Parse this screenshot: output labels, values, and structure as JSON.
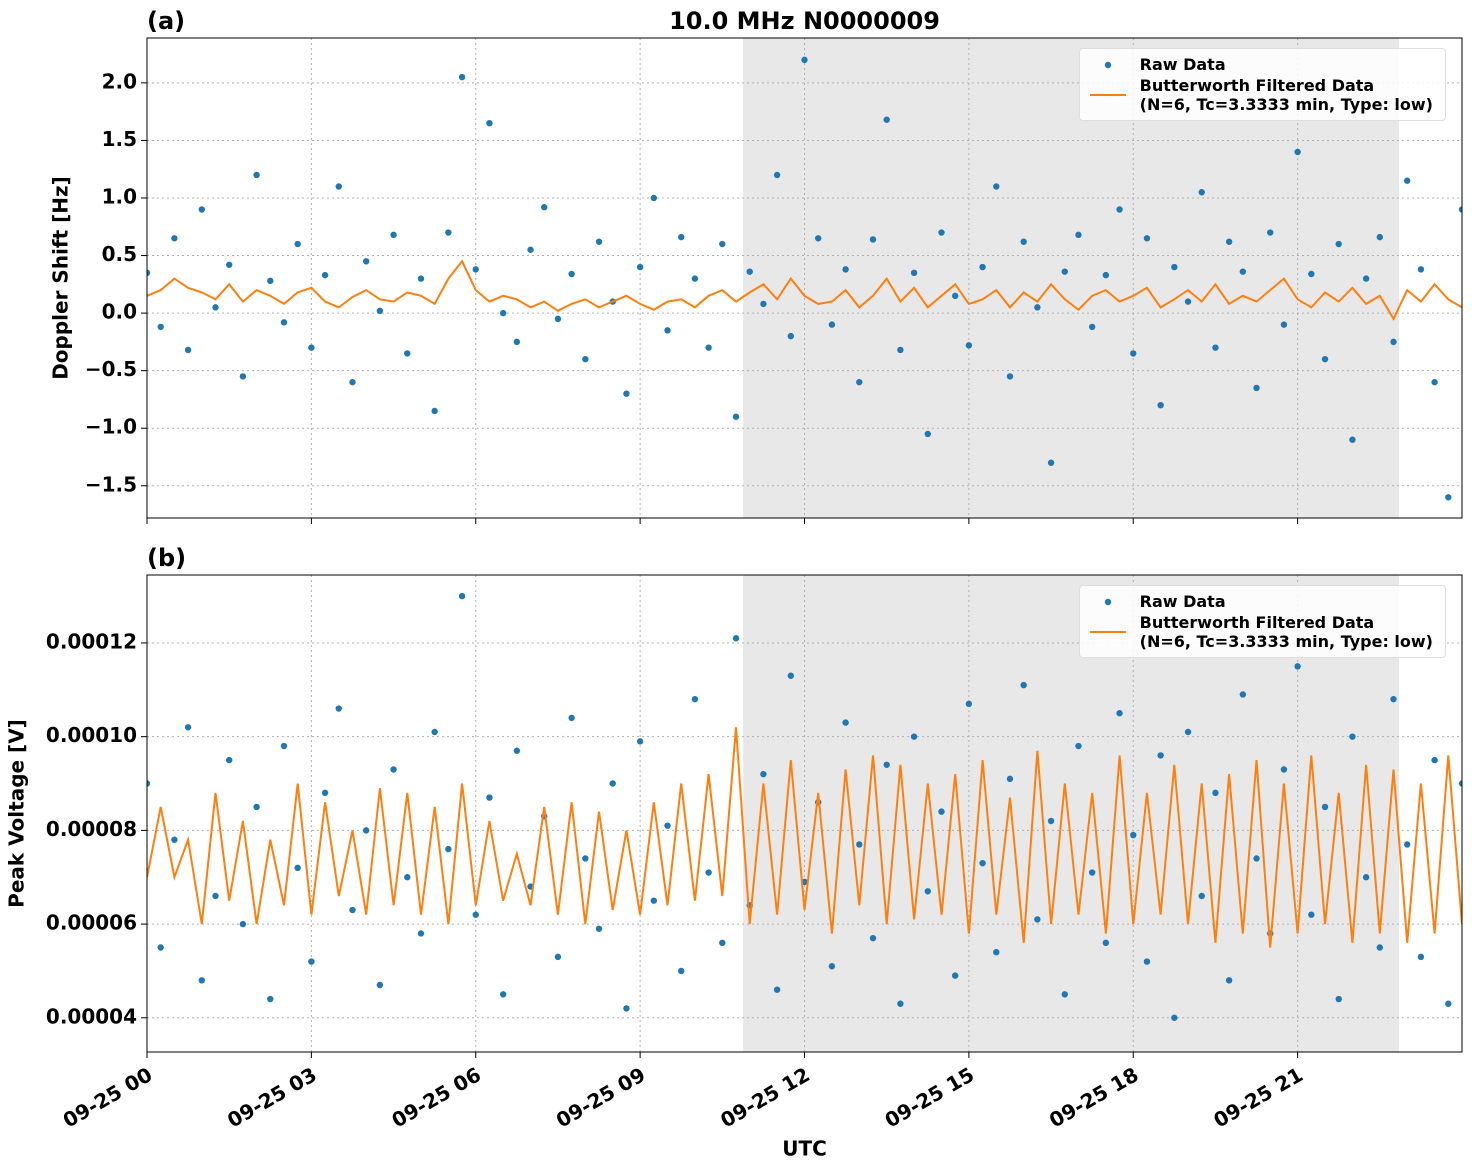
{
  "chart_data": [
    {
      "type": "line",
      "title": "10.0 MHz N0000009",
      "panel_label": "(a)",
      "ylabel": "Doppler Shift [Hz]",
      "xlim": [
        0,
        24
      ],
      "ylim": [
        -1.78,
        2.39
      ],
      "grid": true,
      "legend": "upper right",
      "shaded_span": [
        10.88,
        22.85
      ],
      "xticks": [
        0,
        3,
        6,
        9,
        12,
        15,
        18,
        21
      ],
      "yticks": [
        {
          "value": -1.5,
          "label": "−1.5"
        },
        {
          "value": -1,
          "label": "−1.0"
        },
        {
          "value": -0.5,
          "label": "−0.5"
        },
        {
          "value": 0,
          "label": "0.0"
        },
        {
          "value": 0.5,
          "label": "0.5"
        },
        {
          "value": 1,
          "label": "1.0"
        },
        {
          "value": 1.5,
          "label": "1.5"
        },
        {
          "value": 2,
          "label": "2.0"
        }
      ],
      "x": [
        0,
        0.25,
        0.5,
        0.75,
        1,
        1.25,
        1.5,
        1.75,
        2,
        2.25,
        2.5,
        2.75,
        3,
        3.25,
        3.5,
        3.75,
        4,
        4.25,
        4.5,
        4.75,
        5,
        5.25,
        5.5,
        5.75,
        6,
        6.25,
        6.5,
        6.75,
        7,
        7.25,
        7.5,
        7.75,
        8,
        8.25,
        8.5,
        8.75,
        9,
        9.25,
        9.5,
        9.75,
        10,
        10.25,
        10.5,
        10.75,
        11,
        11.25,
        11.5,
        11.75,
        12,
        12.25,
        12.5,
        12.75,
        13,
        13.25,
        13.5,
        13.75,
        14,
        14.25,
        14.5,
        14.75,
        15,
        15.25,
        15.5,
        15.75,
        16,
        16.25,
        16.5,
        16.75,
        17,
        17.25,
        17.5,
        17.75,
        18,
        18.25,
        18.5,
        18.75,
        19,
        19.25,
        19.5,
        19.75,
        20,
        20.25,
        20.5,
        20.75,
        21,
        21.25,
        21.5,
        21.75,
        22,
        22.25,
        22.5,
        22.75,
        23,
        23.25,
        23.5,
        23.75,
        24
      ],
      "series": [
        {
          "name": "Raw Data",
          "type": "scatter",
          "color": "#1f77b4",
          "values": [
            0.35,
            -0.12,
            0.65,
            -0.32,
            0.9,
            0.05,
            0.42,
            -0.55,
            1.2,
            0.28,
            -0.08,
            0.6,
            -0.3,
            0.33,
            1.1,
            -0.6,
            0.45,
            0.02,
            0.68,
            -0.35,
            0.3,
            -0.85,
            0.7,
            2.05,
            0.38,
            1.65,
            0.0,
            -0.25,
            0.55,
            0.92,
            -0.05,
            0.34,
            -0.4,
            0.62,
            0.1,
            -0.7,
            0.4,
            1.0,
            -0.15,
            0.66,
            0.3,
            -0.3,
            0.6,
            -0.9,
            0.36,
            0.08,
            1.2,
            -0.2,
            2.2,
            0.65,
            -0.1,
            0.38,
            -0.6,
            0.64,
            1.68,
            -0.32,
            0.35,
            -1.05,
            0.7,
            0.15,
            -0.28,
            0.4,
            1.1,
            -0.55,
            0.62,
            0.05,
            -1.3,
            0.36,
            0.68,
            -0.12,
            0.33,
            0.9,
            -0.35,
            0.65,
            -0.8,
            0.4,
            0.1,
            1.05,
            -0.3,
            0.62,
            0.36,
            -0.65,
            0.7,
            -0.1,
            1.4,
            0.34,
            -0.4,
            0.6,
            -1.1,
            0.3,
            0.66,
            -0.25,
            1.15,
            0.38,
            -0.6,
            -1.6,
            0.9
          ]
        },
        {
          "name": "Butterworth Filtered Data\n(N=6, Tc=3.3333 min, Type: low)",
          "type": "line",
          "color": "#ff7f0e",
          "values": [
            0.15,
            0.2,
            0.3,
            0.22,
            0.18,
            0.12,
            0.25,
            0.1,
            0.2,
            0.15,
            0.08,
            0.18,
            0.22,
            0.1,
            0.05,
            0.14,
            0.2,
            0.12,
            0.1,
            0.18,
            0.15,
            0.08,
            0.3,
            0.45,
            0.2,
            0.1,
            0.15,
            0.12,
            0.05,
            0.1,
            0.02,
            0.08,
            0.12,
            0.05,
            0.1,
            0.15,
            0.08,
            0.03,
            0.1,
            0.12,
            0.05,
            0.15,
            0.2,
            0.1,
            0.18,
            0.25,
            0.12,
            0.3,
            0.15,
            0.08,
            0.1,
            0.2,
            0.05,
            0.15,
            0.3,
            0.1,
            0.22,
            0.05,
            0.15,
            0.25,
            0.08,
            0.12,
            0.2,
            0.05,
            0.18,
            0.1,
            0.25,
            0.12,
            0.03,
            0.15,
            0.2,
            0.1,
            0.15,
            0.22,
            0.05,
            0.12,
            0.2,
            0.1,
            0.25,
            0.08,
            0.15,
            0.1,
            0.2,
            0.3,
            0.12,
            0.05,
            0.18,
            0.1,
            0.22,
            0.08,
            0.15,
            -0.05,
            0.2,
            0.1,
            0.25,
            0.12,
            0.05
          ]
        }
      ]
    },
    {
      "type": "line",
      "panel_label": "(b)",
      "ylabel": "Peak Voltage [V]",
      "xlabel": "UTC",
      "xlim": [
        0,
        24
      ],
      "ylim": [
        3.27e-05,
        0.0001345
      ],
      "grid": true,
      "legend": "upper right",
      "shaded_span": [
        10.88,
        22.85
      ],
      "xticks": [
        {
          "value": 0,
          "label": "09-25 00"
        },
        {
          "value": 3,
          "label": "09-25 03"
        },
        {
          "value": 6,
          "label": "09-25 06"
        },
        {
          "value": 9,
          "label": "09-25 09"
        },
        {
          "value": 12,
          "label": "09-25 12"
        },
        {
          "value": 15,
          "label": "09-25 15"
        },
        {
          "value": 18,
          "label": "09-25 18"
        },
        {
          "value": 21,
          "label": "09-25 21"
        }
      ],
      "yticks": [
        4e-05,
        6e-05,
        8e-05,
        {
          "value": 0.0001,
          "label": "0.00010"
        },
        0.00012
      ],
      "x": [
        0,
        0.25,
        0.5,
        0.75,
        1,
        1.25,
        1.5,
        1.75,
        2,
        2.25,
        2.5,
        2.75,
        3,
        3.25,
        3.5,
        3.75,
        4,
        4.25,
        4.5,
        4.75,
        5,
        5.25,
        5.5,
        5.75,
        6,
        6.25,
        6.5,
        6.75,
        7,
        7.25,
        7.5,
        7.75,
        8,
        8.25,
        8.5,
        8.75,
        9,
        9.25,
        9.5,
        9.75,
        10,
        10.25,
        10.5,
        10.75,
        11,
        11.25,
        11.5,
        11.75,
        12,
        12.25,
        12.5,
        12.75,
        13,
        13.25,
        13.5,
        13.75,
        14,
        14.25,
        14.5,
        14.75,
        15,
        15.25,
        15.5,
        15.75,
        16,
        16.25,
        16.5,
        16.75,
        17,
        17.25,
        17.5,
        17.75,
        18,
        18.25,
        18.5,
        18.75,
        19,
        19.25,
        19.5,
        19.75,
        20,
        20.25,
        20.5,
        20.75,
        21,
        21.25,
        21.5,
        21.75,
        22,
        22.25,
        22.5,
        22.75,
        23,
        23.25,
        23.5,
        23.75,
        24
      ],
      "series": [
        {
          "name": "Raw Data",
          "type": "scatter",
          "color": "#1f77b4",
          "values": [
            9e-05,
            5.5e-05,
            7.8e-05,
            0.000102,
            4.8e-05,
            6.6e-05,
            9.5e-05,
            6e-05,
            8.5e-05,
            4.4e-05,
            9.8e-05,
            7.2e-05,
            5.2e-05,
            8.8e-05,
            0.000106,
            6.3e-05,
            8e-05,
            4.7e-05,
            9.3e-05,
            7e-05,
            5.8e-05,
            0.000101,
            7.6e-05,
            0.00013,
            6.2e-05,
            8.7e-05,
            4.5e-05,
            9.7e-05,
            6.8e-05,
            8.3e-05,
            5.3e-05,
            0.000104,
            7.4e-05,
            5.9e-05,
            9e-05,
            4.2e-05,
            9.9e-05,
            6.5e-05,
            8.1e-05,
            5e-05,
            0.000108,
            7.1e-05,
            5.6e-05,
            0.000121,
            6.4e-05,
            9.2e-05,
            4.6e-05,
            0.000113,
            6.9e-05,
            8.6e-05,
            5.1e-05,
            0.000103,
            7.7e-05,
            5.7e-05,
            9.4e-05,
            4.3e-05,
            0.0001,
            6.7e-05,
            8.4e-05,
            4.9e-05,
            0.000107,
            7.3e-05,
            5.4e-05,
            9.1e-05,
            0.000111,
            6.1e-05,
            8.2e-05,
            4.5e-05,
            9.8e-05,
            7.1e-05,
            5.6e-05,
            0.000105,
            7.9e-05,
            5.2e-05,
            9.6e-05,
            4e-05,
            0.000101,
            6.6e-05,
            8.8e-05,
            4.8e-05,
            0.000109,
            7.4e-05,
            5.8e-05,
            9.3e-05,
            0.000115,
            6.2e-05,
            8.5e-05,
            4.4e-05,
            0.0001,
            7e-05,
            5.5e-05,
            0.000108,
            7.7e-05,
            5.3e-05,
            9.5e-05,
            4.3e-05,
            9e-05
          ]
        },
        {
          "name": "Butterworth Filtered Data\n(N=6, Tc=3.3333 min, Type: low)",
          "type": "line",
          "color": "#ff7f0e",
          "values": [
            7e-05,
            8.5e-05,
            7e-05,
            7.8e-05,
            6e-05,
            8.8e-05,
            6.5e-05,
            8.2e-05,
            6e-05,
            7.8e-05,
            6.4e-05,
            9e-05,
            6.2e-05,
            8.6e-05,
            6.6e-05,
            8e-05,
            6.2e-05,
            8.9e-05,
            6.4e-05,
            8.8e-05,
            6.2e-05,
            8.5e-05,
            6e-05,
            9e-05,
            6.4e-05,
            8.2e-05,
            6.5e-05,
            7.5e-05,
            6.4e-05,
            8.5e-05,
            6.2e-05,
            8.6e-05,
            6e-05,
            8.4e-05,
            6.3e-05,
            8e-05,
            6.2e-05,
            8.6e-05,
            6.4e-05,
            9e-05,
            6.5e-05,
            9.2e-05,
            6.6e-05,
            0.000102,
            6e-05,
            9e-05,
            6.2e-05,
            9.5e-05,
            6.3e-05,
            8.8e-05,
            5.8e-05,
            9.3e-05,
            6.4e-05,
            9.6e-05,
            6e-05,
            9.4e-05,
            6.1e-05,
            9e-05,
            6.2e-05,
            9.2e-05,
            5.8e-05,
            9.5e-05,
            6.2e-05,
            8.7e-05,
            5.6e-05,
            9.7e-05,
            6e-05,
            9e-05,
            6.2e-05,
            8.8e-05,
            5.8e-05,
            9.6e-05,
            6e-05,
            8.8e-05,
            6.2e-05,
            9.4e-05,
            6e-05,
            9e-05,
            5.6e-05,
            9.2e-05,
            5.8e-05,
            9.5e-05,
            5.5e-05,
            9e-05,
            5.8e-05,
            9.6e-05,
            6e-05,
            8.8e-05,
            5.6e-05,
            9.4e-05,
            5.8e-05,
            9.3e-05,
            5.6e-05,
            9e-05,
            5.8e-05,
            9.6e-05,
            6e-05
          ]
        }
      ]
    }
  ]
}
